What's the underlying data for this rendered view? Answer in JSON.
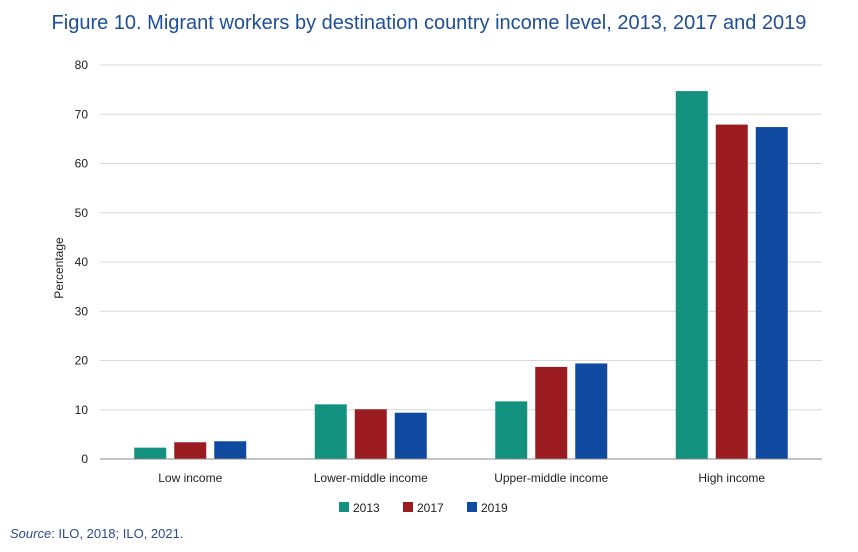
{
  "title": "Figure 10. Migrant workers by destination country income level, 2013, 2017 and 2019",
  "source": {
    "label": "Source",
    "text": ": ILO, 2018; ILO, 2021."
  },
  "chart_data": {
    "type": "bar",
    "ylabel": "Percentage",
    "xlabel": "",
    "ylim": [
      0,
      80
    ],
    "yticks": [
      0,
      10,
      20,
      30,
      40,
      50,
      60,
      70,
      80
    ],
    "grid": true,
    "legend_position": "bottom",
    "categories": [
      "Low income",
      "Lower-middle income",
      "Upper-middle income",
      "High income"
    ],
    "series": [
      {
        "name": "2013",
        "color": "#12917f",
        "values": [
          2.3,
          11.1,
          11.7,
          74.7
        ]
      },
      {
        "name": "2017",
        "color": "#9b1c20",
        "values": [
          3.4,
          10.1,
          18.7,
          67.9
        ]
      },
      {
        "name": "2019",
        "color": "#0f4aa0",
        "values": [
          3.6,
          9.4,
          19.4,
          67.4
        ]
      }
    ]
  }
}
